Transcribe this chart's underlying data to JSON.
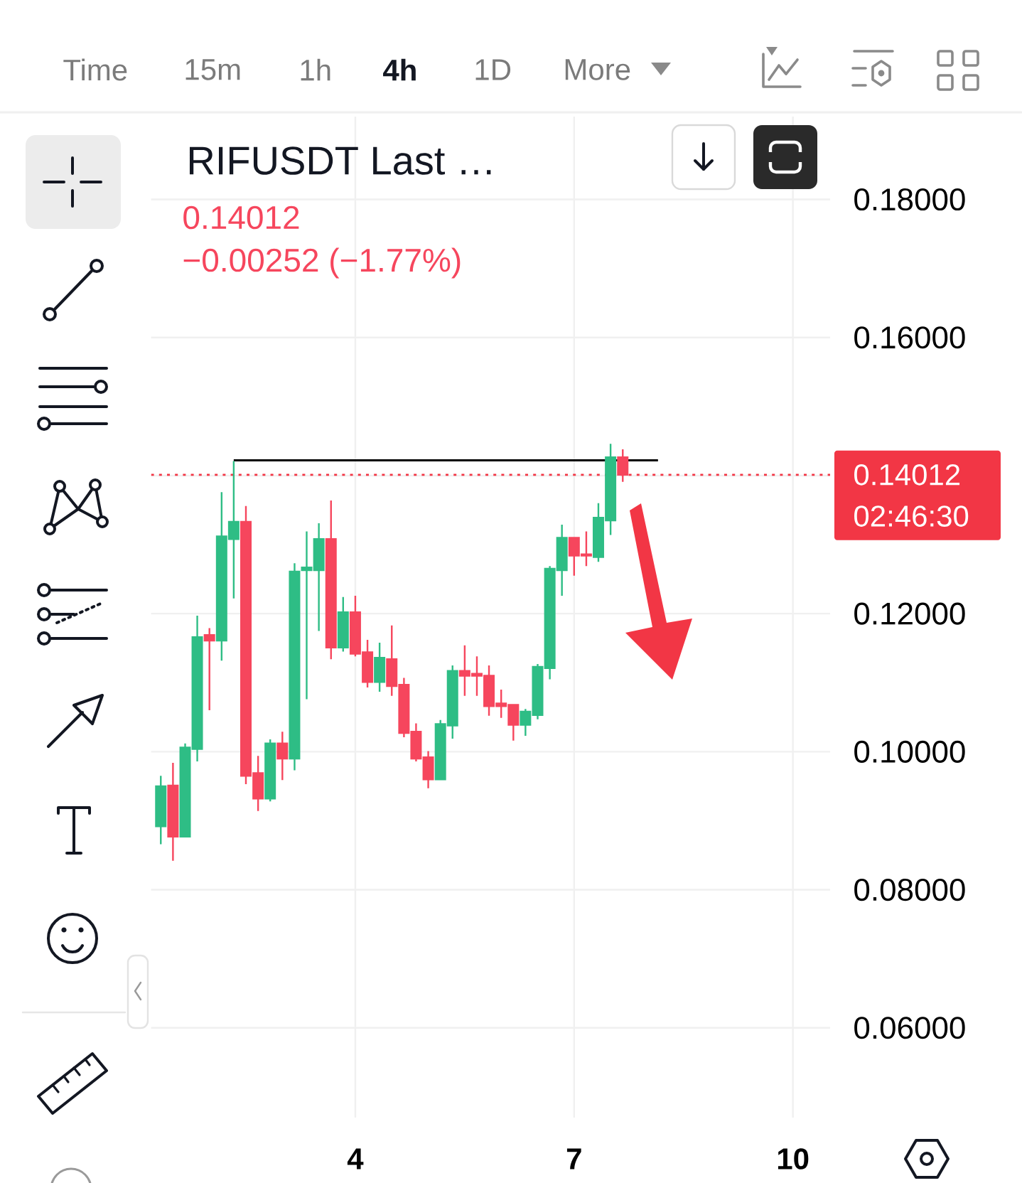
{
  "chart_data": {
    "type": "candlestick",
    "title": "RIFUSDT Last …",
    "x": [
      1.333,
      1.5,
      1.667,
      1.833,
      2,
      2.167,
      2.333,
      2.5,
      2.667,
      2.833,
      3,
      3.167,
      3.333,
      3.5,
      3.667,
      3.833,
      4,
      4.167,
      4.333,
      4.5,
      4.667,
      4.833,
      5,
      5.167,
      5.333,
      5.5,
      5.667,
      5.833,
      6,
      6.167,
      6.333,
      6.5,
      6.667,
      6.833,
      7,
      7.167,
      7.333,
      7.5,
      7.667
    ],
    "ohlc": [
      [
        0.0892,
        0.0965,
        0.0866,
        0.095
      ],
      [
        0.0951,
        0.0984,
        0.0842,
        0.0877
      ],
      [
        0.0877,
        0.1012,
        0.0877,
        0.1006
      ],
      [
        0.1004,
        0.1197,
        0.0986,
        0.1166
      ],
      [
        0.1169,
        0.1179,
        0.106,
        0.1161
      ],
      [
        0.1161,
        0.1376,
        0.1132,
        0.1312
      ],
      [
        0.1308,
        0.1421,
        0.1222,
        0.1333
      ],
      [
        0.1333,
        0.1356,
        0.0953,
        0.0965
      ],
      [
        0.0969,
        0.0994,
        0.0914,
        0.0932
      ],
      [
        0.0932,
        0.1018,
        0.0928,
        0.1012
      ],
      [
        0.1012,
        0.1029,
        0.0959,
        0.099
      ],
      [
        0.099,
        0.1273,
        0.0973,
        0.1261
      ],
      [
        0.1263,
        0.1319,
        0.1076,
        0.1267
      ],
      [
        0.1263,
        0.1331,
        0.1175,
        0.1308
      ],
      [
        0.1308,
        0.1364,
        0.1134,
        0.1151
      ],
      [
        0.1151,
        0.1224,
        0.1145,
        0.1202
      ],
      [
        0.1202,
        0.1226,
        0.1138,
        0.1142
      ],
      [
        0.1144,
        0.1162,
        0.1093,
        0.1101
      ],
      [
        0.1101,
        0.1158,
        0.1087,
        0.1136
      ],
      [
        0.1134,
        0.1183,
        0.1081,
        0.1095
      ],
      [
        0.1097,
        0.1107,
        0.1021,
        0.1027
      ],
      [
        0.1029,
        0.1041,
        0.0986,
        0.099
      ],
      [
        0.0992,
        0.1001,
        0.0947,
        0.096
      ],
      [
        0.096,
        0.1046,
        0.096,
        0.104
      ],
      [
        0.1038,
        0.1125,
        0.1019,
        0.1117
      ],
      [
        0.1117,
        0.1154,
        0.1081,
        0.111
      ],
      [
        0.1113,
        0.1138,
        0.1081,
        0.111
      ],
      [
        0.111,
        0.1125,
        0.1052,
        0.1066
      ],
      [
        0.107,
        0.109,
        0.1049,
        0.1066
      ],
      [
        0.1068,
        0.1069,
        0.1016,
        0.1039
      ],
      [
        0.1039,
        0.1062,
        0.1023,
        0.1058
      ],
      [
        0.1053,
        0.1127,
        0.1047,
        0.1123
      ],
      [
        0.1121,
        0.1269,
        0.1105,
        0.1265
      ],
      [
        0.1263,
        0.1329,
        0.1226,
        0.131
      ],
      [
        0.131,
        0.131,
        0.1255,
        0.1284
      ],
      [
        0.1286,
        0.1319,
        0.1269,
        0.1284
      ],
      [
        0.1282,
        0.136,
        0.1275,
        0.1339
      ],
      [
        0.1335,
        0.1446,
        0.1314,
        0.14264
      ],
      [
        0.14264,
        0.1438,
        0.1391,
        0.14012
      ]
    ],
    "colors": [
      "#2ebd85",
      "#f6465d",
      "#2ebd85",
      "#2ebd85",
      "#f6465d",
      "#2ebd85",
      "#2ebd85",
      "#f6465d",
      "#f6465d",
      "#2ebd85",
      "#f6465d",
      "#2ebd85",
      "#2ebd85",
      "#2ebd85",
      "#f6465d",
      "#2ebd85",
      "#f6465d",
      "#f6465d",
      "#2ebd85",
      "#f6465d",
      "#f6465d",
      "#f6465d",
      "#f6465d",
      "#2ebd85",
      "#2ebd85",
      "#f6465d",
      "#f6465d",
      "#f6465d",
      "#f6465d",
      "#f6465d",
      "#2ebd85",
      "#2ebd85",
      "#2ebd85",
      "#2ebd85",
      "#f6465d",
      "#f6465d",
      "#2ebd85",
      "#2ebd85",
      "#f6465d"
    ],
    "series": [
      {
        "type": "line",
        "x": [
          2.333,
          8.15
        ],
        "values": [
          0.1422,
          0.1422
        ],
        "color": "#000000"
      }
    ],
    "xlim": [
      1.2,
      10.51
    ],
    "xticks": [
      4,
      7,
      10
    ],
    "ylim": [
      0.047,
      0.192
    ],
    "yticks": [
      {
        "value": 0.06,
        "label": "0.06000"
      },
      {
        "value": 0.08,
        "label": "0.08000"
      },
      {
        "value": 0.1,
        "label": "0.10000"
      },
      {
        "value": 0.12,
        "label": "0.12000"
      },
      {
        "value": 0.14,
        "label": null
      },
      {
        "value": 0.16,
        "label": "0.16000"
      },
      {
        "value": 0.18,
        "label": "0.18000"
      }
    ],
    "ref_lines": [
      {
        "axis": "y",
        "value": 0.14012,
        "label": "0.14012",
        "color": "#f23645",
        "line_style": "dotted"
      }
    ],
    "grid": true,
    "annotations": [
      "0.14012",
      "−0.00252 (−1.77%)",
      "02:46:30",
      "Time",
      "15m",
      "1h",
      "4h",
      "1D",
      "More"
    ]
  }
}
